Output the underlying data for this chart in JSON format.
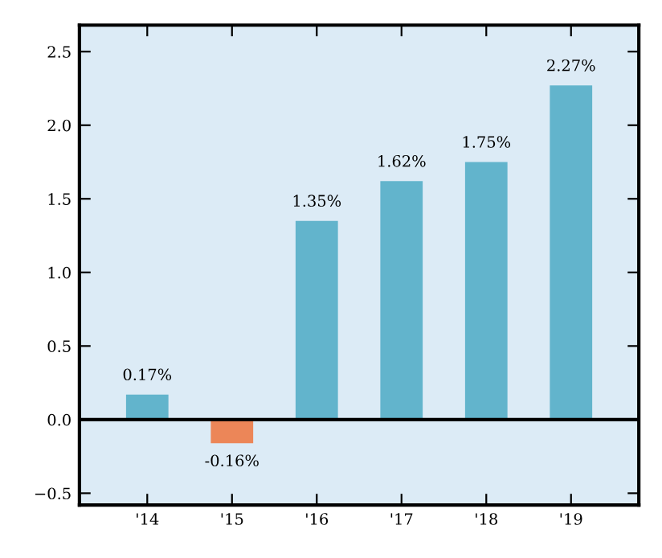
{
  "chart_data": {
    "type": "bar",
    "categories": [
      "'14",
      "'15",
      "'16",
      "'17",
      "'18",
      "'19"
    ],
    "values": [
      0.17,
      -0.16,
      1.35,
      1.62,
      1.75,
      2.27
    ],
    "colors": [
      "#62b4cc",
      "#ec8658",
      "#62b4cc",
      "#62b4cc",
      "#62b4cc",
      "#62b4cc"
    ],
    "value_labels": [
      "0.17%",
      "-0.16%",
      "1.35%",
      "1.62%",
      "1.75%",
      "2.27%"
    ],
    "ylim": [
      -0.58,
      2.68
    ],
    "yticks": [
      {
        "value": -0.5,
        "label": "−0.5"
      },
      {
        "value": 0,
        "label": "0.0"
      },
      0.5,
      {
        "value": 1,
        "label": "1.0"
      },
      1.5,
      {
        "value": 2,
        "label": "2.0"
      },
      2.5
    ],
    "ref_lines": [
      {
        "axis": "y",
        "value": 0,
        "color": "#000000"
      }
    ],
    "grid": false
  }
}
